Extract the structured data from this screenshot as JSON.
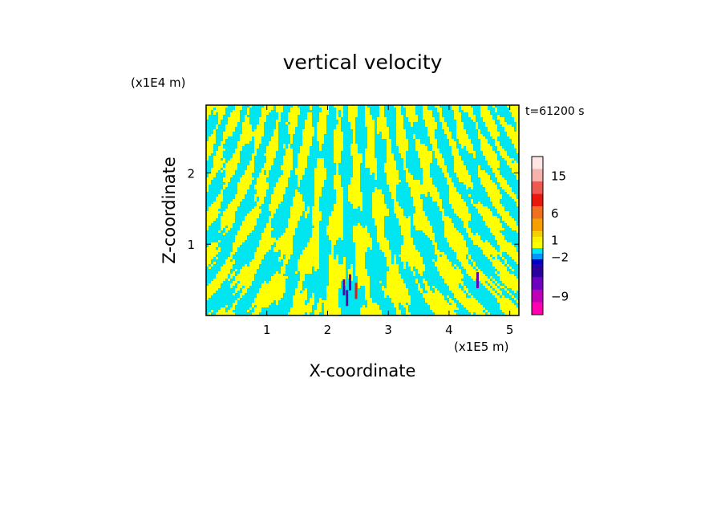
{
  "chart_data": {
    "type": "heatmap",
    "title": "vertical velocity",
    "xlabel": "X-coordinate",
    "ylabel": "Z-coordinate",
    "x_unit": "(x1E5 m)",
    "y_unit": "(x1E4 m)",
    "time_label": "t=61200 s",
    "xlim": [
      0,
      5.15
    ],
    "ylim": [
      0,
      2.95
    ],
    "xticks": [
      1,
      2,
      3,
      4,
      5
    ],
    "yticks": [
      1,
      2
    ],
    "grid": false,
    "colorbar": {
      "placement": "right",
      "tick_labels": [
        "15",
        "6",
        "1",
        "−2",
        "−9"
      ],
      "tick_values": [
        15,
        6,
        1,
        -2,
        -9
      ],
      "levels": [
        {
          "from": 18,
          "to": 24,
          "color": "#fde6e4"
        },
        {
          "from": 15,
          "to": 18,
          "color": "#f5b3b0"
        },
        {
          "from": 12,
          "to": 15,
          "color": "#ee5a52"
        },
        {
          "from": 9,
          "to": 12,
          "color": "#e8180f"
        },
        {
          "from": 6,
          "to": 9,
          "color": "#f07020"
        },
        {
          "from": 3,
          "to": 6,
          "color": "#f5a000"
        },
        {
          "from": 2,
          "to": 3,
          "color": "#f5d000"
        },
        {
          "from": 1,
          "to": 2,
          "color": "#f5f500"
        },
        {
          "from": 0,
          "to": 1,
          "color": "#ffff00"
        },
        {
          "from": -1,
          "to": 0,
          "color": "#00e6f0"
        },
        {
          "from": -2,
          "to": -1,
          "color": "#0096ff"
        },
        {
          "from": -3,
          "to": -2,
          "color": "#0000c8"
        },
        {
          "from": -4,
          "to": -3,
          "color": "#2a00a0"
        },
        {
          "from": -6,
          "to": -4,
          "color": "#6e00c0"
        },
        {
          "from": -9,
          "to": -6,
          "color": "#c000b8"
        },
        {
          "from": -12,
          "to": -9,
          "color": "#ff00b0"
        }
      ]
    },
    "dominant_fields": {
      "positive_color": "#ffff00",
      "negative_color": "#00e6f0",
      "strong_negative_color": "#6000b0",
      "strong_positive_color": "#e8180f"
    }
  }
}
